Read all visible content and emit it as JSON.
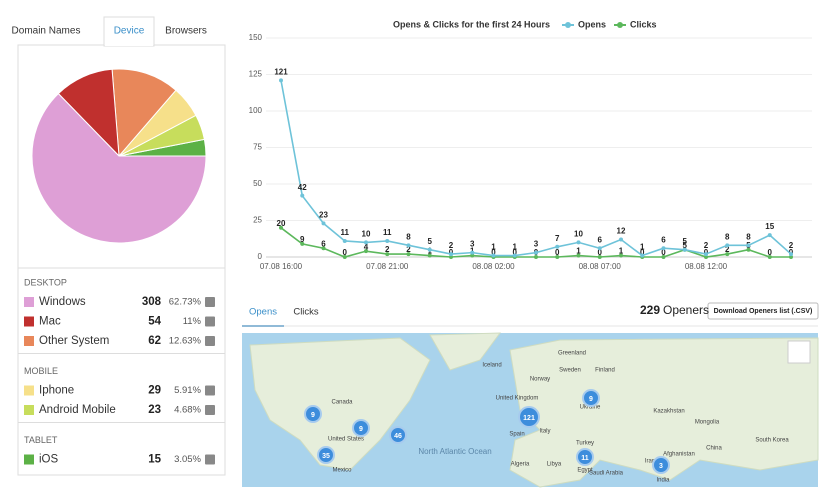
{
  "tabs": [
    "Domain Names",
    "Device",
    "Browsers"
  ],
  "device_groups": [
    {
      "title": "DESKTOP",
      "items": [
        {
          "name": "Windows",
          "count": 308,
          "percent": "62.73%",
          "color": "#de9fd6"
        },
        {
          "name": "Mac",
          "count": 54,
          "percent": "11%",
          "color": "#c0302e"
        },
        {
          "name": "Other System",
          "count": 62,
          "percent": "12.63%",
          "color": "#e8875a"
        }
      ]
    },
    {
      "title": "MOBILE",
      "items": [
        {
          "name": "Iphone",
          "count": 29,
          "percent": "5.91%",
          "color": "#f6e08a"
        },
        {
          "name": "Android Mobile",
          "count": 23,
          "percent": "4.68%",
          "color": "#c7dd5c"
        }
      ]
    },
    {
      "title": "TABLET",
      "items": [
        {
          "name": "iOS",
          "count": 15,
          "percent": "3.05%",
          "color": "#5cb146"
        }
      ]
    }
  ],
  "chart_data": {
    "type": "line",
    "title": "Opens & Clicks for the first 24 Hours",
    "categories": [
      "07.08 16:00",
      null,
      null,
      null,
      null,
      "07.08 21:00",
      null,
      null,
      null,
      null,
      "08.08 02:00",
      null,
      null,
      null,
      null,
      "08.08 07:00",
      null,
      null,
      null,
      null,
      "08.08 12:00",
      null,
      null,
      null,
      null
    ],
    "series": [
      {
        "name": "Opens",
        "color": "#6ec3d9",
        "values": [
          121,
          42,
          23,
          11,
          10,
          11,
          8,
          5,
          2,
          3,
          1,
          1,
          3,
          7,
          10,
          6,
          12,
          1,
          6,
          5,
          2,
          8,
          8,
          15,
          2
        ]
      },
      {
        "name": "Clicks",
        "color": "#5cb85c",
        "values": [
          20,
          9,
          6,
          0,
          4,
          2,
          2,
          1,
          0,
          1,
          0,
          0,
          0,
          0,
          1,
          0,
          1,
          0,
          0,
          5,
          0,
          2,
          5,
          0,
          0
        ]
      }
    ],
    "ylim": [
      0,
      150
    ],
    "yticks": [
      0,
      25,
      50,
      75,
      100,
      125,
      150
    ],
    "grid": true,
    "legend": "top"
  },
  "openers_tabs": [
    "Opens",
    "Clicks"
  ],
  "openers": {
    "count": 229,
    "label": "Openers",
    "button": "Download Openers list (.CSV)"
  },
  "map": {
    "labels": [
      "Greenland",
      "Canada",
      "United States",
      "Mexico",
      "North Atlantic Ocean",
      "Norway",
      "Sweden",
      "Finland",
      "United Kingdom",
      "Ukraine",
      "Kazakhstan",
      "Mongolia",
      "Spain",
      "Italy",
      "Turkey",
      "Iran",
      "China",
      "Algeria",
      "Libya",
      "Egypt",
      "Saudi Arabia",
      "India",
      "South Korea",
      "Afghanistan",
      "Iceland"
    ],
    "clusters": [
      9,
      9,
      46,
      35,
      121,
      9,
      11,
      3
    ]
  }
}
